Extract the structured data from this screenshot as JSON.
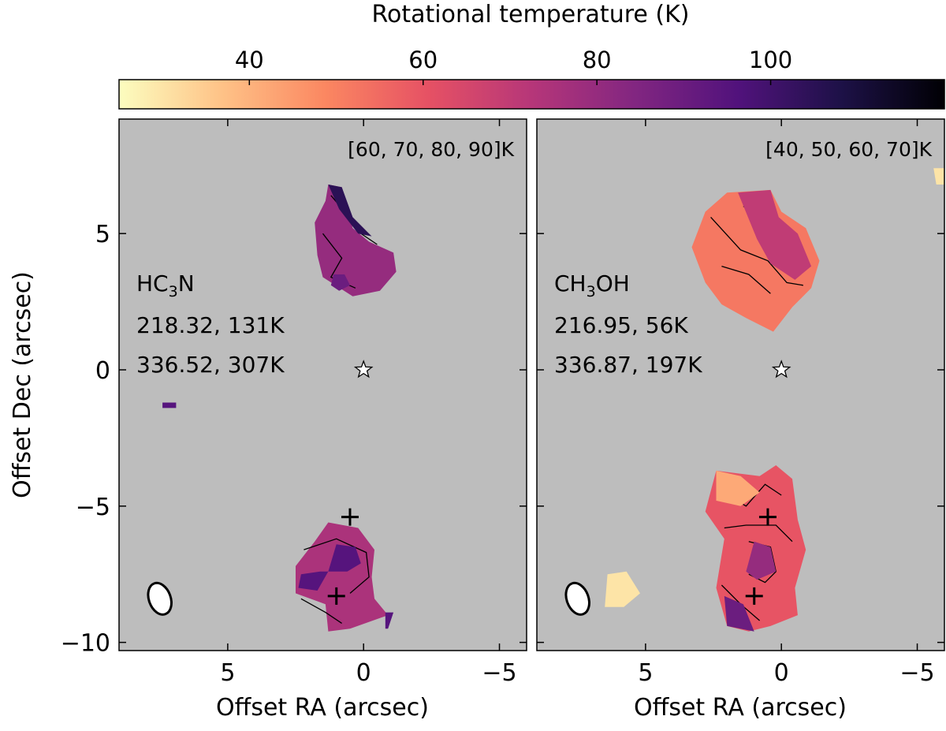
{
  "chart_data": {
    "type": "heatmap",
    "colorbar": {
      "title": "Rotational temperature (K)",
      "range": [
        25,
        120
      ],
      "ticks": [
        40,
        60,
        80,
        100
      ],
      "tick_labels": [
        "40",
        "60",
        "80",
        "100"
      ],
      "colormap": [
        "#fcfdbf",
        "#fec287",
        "#fb8761",
        "#e65164",
        "#b63679",
        "#822681",
        "#51127c",
        "#1d1147",
        "#000004"
      ]
    },
    "xlabel": "Offset RA (arcsec)",
    "ylabel": "Offset Dec (arcsec)",
    "xlim": [
      9,
      -6
    ],
    "ylim": [
      -10.3,
      9.2
    ],
    "xticks": [
      5,
      0,
      -5
    ],
    "xtick_labels": [
      "5",
      "0",
      "−5"
    ],
    "yticks": [
      5,
      0,
      -5,
      -10
    ],
    "ytick_labels": [
      "5",
      "0",
      "−5",
      "−10"
    ],
    "background_color": "#bdbdbd",
    "star": {
      "x": 0,
      "y": 0
    },
    "crosses": [
      {
        "x": 0.5,
        "y": -5.4
      },
      {
        "x": 1.0,
        "y": -8.3
      }
    ],
    "beam": {
      "x": 7.5,
      "y": -8.4,
      "major_arcsec": 1.2,
      "minor_arcsec": 0.8,
      "pa_deg": 20
    },
    "panels": [
      {
        "molecule": "HC3N",
        "molecule_main": "HC",
        "molecule_sub": "3",
        "molecule_tail": "N",
        "lines": [
          "218.32, 131K",
          "336.52, 307K"
        ],
        "contour_label": "[60, 70, 80, 90]K",
        "contour_levels": [
          60,
          70,
          80,
          90
        ],
        "regions": [
          {
            "name": "north",
            "temp_k": 80,
            "points": [
              [
                1.3,
                6.8
              ],
              [
                0.8,
                6.7
              ],
              [
                0.4,
                5.2
              ],
              [
                -0.2,
                4.7
              ],
              [
                -1.1,
                4.3
              ],
              [
                -1.2,
                3.6
              ],
              [
                -0.6,
                2.9
              ],
              [
                0.4,
                2.7
              ],
              [
                1.5,
                3.4
              ],
              [
                1.7,
                4.2
              ],
              [
                1.8,
                5.4
              ],
              [
                1.4,
                6.2
              ]
            ],
            "contours": [
              [
                [
                  1.2,
                  6.4
                ],
                [
                  0.7,
                  5.8
                ],
                [
                  0.1,
                  5.0
                ],
                [
                  -0.5,
                  4.6
                ]
              ],
              [
                [
                  1.5,
                  5.0
                ],
                [
                  0.8,
                  4.1
                ],
                [
                  1.2,
                  3.4
                ],
                [
                  0.3,
                  3.0
                ]
              ]
            ]
          },
          {
            "name": "north-ridge",
            "temp_k": 105,
            "points": [
              [
                1.3,
                6.8
              ],
              [
                0.8,
                6.7
              ],
              [
                0.4,
                5.6
              ],
              [
                -0.3,
                4.9
              ],
              [
                0.2,
                5.0
              ],
              [
                0.9,
                5.9
              ]
            ]
          },
          {
            "name": "north-spot",
            "temp_k": 90,
            "points": [
              [
                1.1,
                3.5
              ],
              [
                0.7,
                3.5
              ],
              [
                0.5,
                3.1
              ],
              [
                0.9,
                2.9
              ],
              [
                1.2,
                3.1
              ]
            ]
          },
          {
            "name": "south",
            "temp_k": 75,
            "points": [
              [
                1.3,
                -5.6
              ],
              [
                0.2,
                -5.8
              ],
              [
                -0.4,
                -6.6
              ],
              [
                -0.3,
                -7.6
              ],
              [
                -0.4,
                -8.4
              ],
              [
                -0.9,
                -9.0
              ],
              [
                0.5,
                -9.5
              ],
              [
                1.3,
                -9.6
              ],
              [
                1.4,
                -8.6
              ],
              [
                2.5,
                -8.2
              ],
              [
                2.5,
                -7.2
              ],
              [
                1.8,
                -6.3
              ]
            ],
            "contours": [
              [
                [
                  2.2,
                  -6.6
                ],
                [
                  1.0,
                  -6.2
                ],
                [
                  -0.1,
                  -6.7
                ],
                [
                  -0.2,
                  -7.6
                ],
                [
                  0.5,
                  -8.2
                ]
              ],
              [
                [
                  2.3,
                  -8.4
                ],
                [
                  1.4,
                  -8.9
                ],
                [
                  0.8,
                  -9.3
                ]
              ]
            ]
          },
          {
            "name": "south-core",
            "temp_k": 95,
            "points": [
              [
                1.0,
                -6.4
              ],
              [
                0.3,
                -6.5
              ],
              [
                0.1,
                -7.1
              ],
              [
                0.6,
                -7.4
              ],
              [
                1.6,
                -7.4
              ],
              [
                2.3,
                -7.5
              ],
              [
                2.4,
                -8.0
              ],
              [
                1.7,
                -8.1
              ],
              [
                1.3,
                -7.4
              ]
            ]
          },
          {
            "name": "west-blob",
            "temp_k": 95,
            "points": [
              [
                7.4,
                -1.2
              ],
              [
                6.9,
                -1.2
              ],
              [
                6.9,
                -1.4
              ],
              [
                7.4,
                -1.4
              ]
            ]
          },
          {
            "name": "southwest-blob",
            "temp_k": 95,
            "points": [
              [
                -0.8,
                -8.9
              ],
              [
                -1.1,
                -8.9
              ],
              [
                -0.9,
                -9.5
              ],
              [
                -0.8,
                -9.5
              ]
            ]
          }
        ]
      },
      {
        "molecule": "CH3OH",
        "molecule_main": "CH",
        "molecule_sub": "3",
        "molecule_tail": "OH",
        "lines": [
          "216.95, 56K",
          "336.87, 197K"
        ],
        "contour_label": "[40, 50, 60, 70]K",
        "contour_levels": [
          40,
          50,
          60,
          70
        ],
        "regions": [
          {
            "name": "north",
            "temp_k": 52,
            "points": [
              [
                2.0,
                6.5
              ],
              [
                0.4,
                6.6
              ],
              [
                0.0,
                5.8
              ],
              [
                -0.9,
                5.2
              ],
              [
                -1.4,
                4.0
              ],
              [
                -1.1,
                3.0
              ],
              [
                -0.4,
                2.3
              ],
              [
                0.3,
                1.4
              ],
              [
                1.3,
                1.9
              ],
              [
                2.2,
                2.4
              ],
              [
                2.8,
                3.2
              ],
              [
                3.3,
                4.5
              ],
              [
                2.8,
                5.8
              ]
            ],
            "contours": [
              [
                [
                  2.6,
                  5.6
                ],
                [
                  1.5,
                  4.4
                ],
                [
                  0.5,
                  4.0
                ],
                [
                  -0.2,
                  3.2
                ],
                [
                  -0.8,
                  3.1
                ]
              ],
              [
                [
                  2.2,
                  3.8
                ],
                [
                  1.2,
                  3.5
                ],
                [
                  0.4,
                  2.8
                ]
              ],
              [
                [
                  1.4,
                  6.0
                ],
                [
                  0.7,
                  5.6
                ],
                [
                  0.4,
                  4.8
                ],
                [
                  -0.7,
                  4.5
                ]
              ]
            ]
          },
          {
            "name": "north-warm",
            "temp_k": 70,
            "points": [
              [
                1.6,
                6.5
              ],
              [
                0.4,
                6.6
              ],
              [
                0.1,
                5.6
              ],
              [
                -0.6,
                5.0
              ],
              [
                -1.1,
                3.8
              ],
              [
                -0.5,
                3.3
              ],
              [
                0.4,
                3.9
              ],
              [
                0.9,
                4.8
              ]
            ]
          },
          {
            "name": "south",
            "temp_k": 60,
            "points": [
              [
                2.4,
                -3.7
              ],
              [
                0.8,
                -3.9
              ],
              [
                0.2,
                -3.5
              ],
              [
                -0.4,
                -4.0
              ],
              [
                -0.6,
                -5.5
              ],
              [
                -0.9,
                -6.6
              ],
              [
                -0.5,
                -8.0
              ],
              [
                -0.6,
                -9.0
              ],
              [
                0.4,
                -9.4
              ],
              [
                1.2,
                -9.6
              ],
              [
                2.0,
                -9.4
              ],
              [
                2.4,
                -8.0
              ],
              [
                2.1,
                -6.2
              ],
              [
                2.8,
                -5.2
              ]
            ],
            "contours": [
              [
                [
                  2.3,
                  -4.4
                ],
                [
                  1.3,
                  -5.0
                ],
                [
                  0.6,
                  -4.2
                ],
                [
                  0.0,
                  -4.6
                ]
              ],
              [
                [
                  2.1,
                  -5.8
                ],
                [
                  1.3,
                  -5.7
                ],
                [
                  0.2,
                  -5.7
                ],
                [
                  -0.4,
                  -6.3
                ]
              ],
              [
                [
                  1.2,
                  -6.3
                ],
                [
                  0.4,
                  -6.5
                ],
                [
                  0.2,
                  -7.4
                ],
                [
                  0.6,
                  -7.8
                ],
                [
                  1.2,
                  -7.5
                ]
              ],
              [
                [
                  2.2,
                  -7.9
                ],
                [
                  1.5,
                  -8.6
                ],
                [
                  0.8,
                  -9.2
                ]
              ]
            ]
          },
          {
            "name": "south-north-cool",
            "temp_k": 42,
            "points": [
              [
                2.4,
                -3.7
              ],
              [
                1.5,
                -3.9
              ],
              [
                0.8,
                -4.5
              ],
              [
                1.5,
                -5.0
              ],
              [
                2.4,
                -4.8
              ]
            ]
          },
          {
            "name": "south-core",
            "temp_k": 80,
            "points": [
              [
                1.0,
                -6.3
              ],
              [
                0.4,
                -6.5
              ],
              [
                0.2,
                -7.4
              ],
              [
                0.9,
                -7.7
              ],
              [
                1.3,
                -7.4
              ]
            ]
          },
          {
            "name": "south-tip",
            "temp_k": 90,
            "points": [
              [
                2.1,
                -8.3
              ],
              [
                1.4,
                -8.6
              ],
              [
                1.0,
                -9.6
              ],
              [
                2.0,
                -9.4
              ]
            ]
          },
          {
            "name": "west-blob",
            "temp_k": 30,
            "points": [
              [
                6.4,
                -7.5
              ],
              [
                5.7,
                -7.4
              ],
              [
                5.2,
                -8.2
              ],
              [
                5.8,
                -8.7
              ],
              [
                6.5,
                -8.7
              ]
            ]
          },
          {
            "name": "edge-blob",
            "temp_k": 30,
            "points": [
              [
                -5.6,
                7.4
              ],
              [
                -6.0,
                7.4
              ],
              [
                -6.0,
                6.8
              ],
              [
                -5.7,
                6.8
              ]
            ]
          }
        ]
      }
    ]
  }
}
